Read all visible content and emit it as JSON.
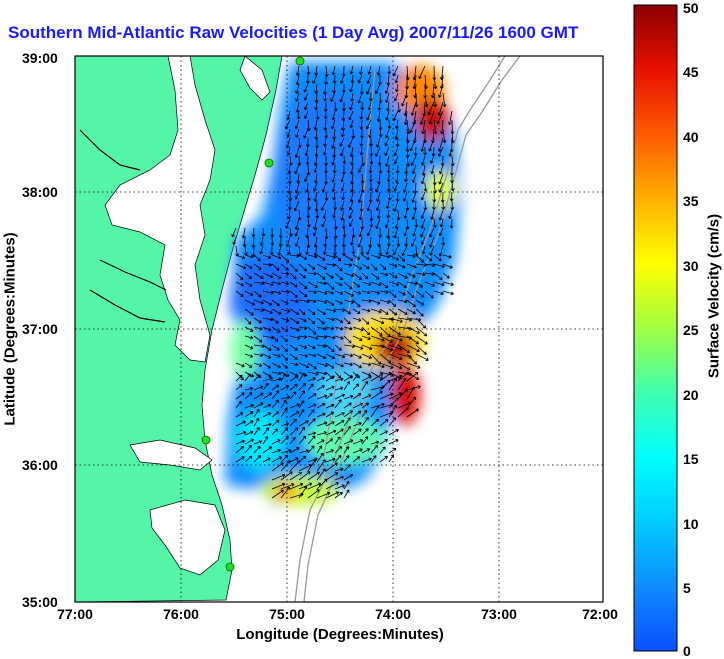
{
  "title": "Southern Mid-Atlantic Raw Velocities (1 Day Avg) 2007/11/26 1600 GMT",
  "axes": {
    "xlabel": "Longitude (Degrees:Minutes)",
    "ylabel": "Latitude (Degrees:Minutes)",
    "xticks": [
      "77:00",
      "76:00",
      "75:00",
      "74:00",
      "73:00",
      "72:00"
    ],
    "yticks": [
      "39:00",
      "38:00",
      "37:00",
      "36:00",
      "35:00"
    ],
    "grid": "dotted"
  },
  "colorbar": {
    "label": "Surface Velocity (cm/s)",
    "ticks": [
      "50",
      "45",
      "40",
      "35",
      "30",
      "25",
      "20",
      "15",
      "10",
      "5",
      "0"
    ],
    "range": [
      0,
      50
    ],
    "colormap": "jet"
  },
  "colors": {
    "land": "#55f5a8",
    "ocean": "#ffffff",
    "title": "#1a1aff",
    "bathymetry": "#999999",
    "stations": "#22dd22"
  }
}
